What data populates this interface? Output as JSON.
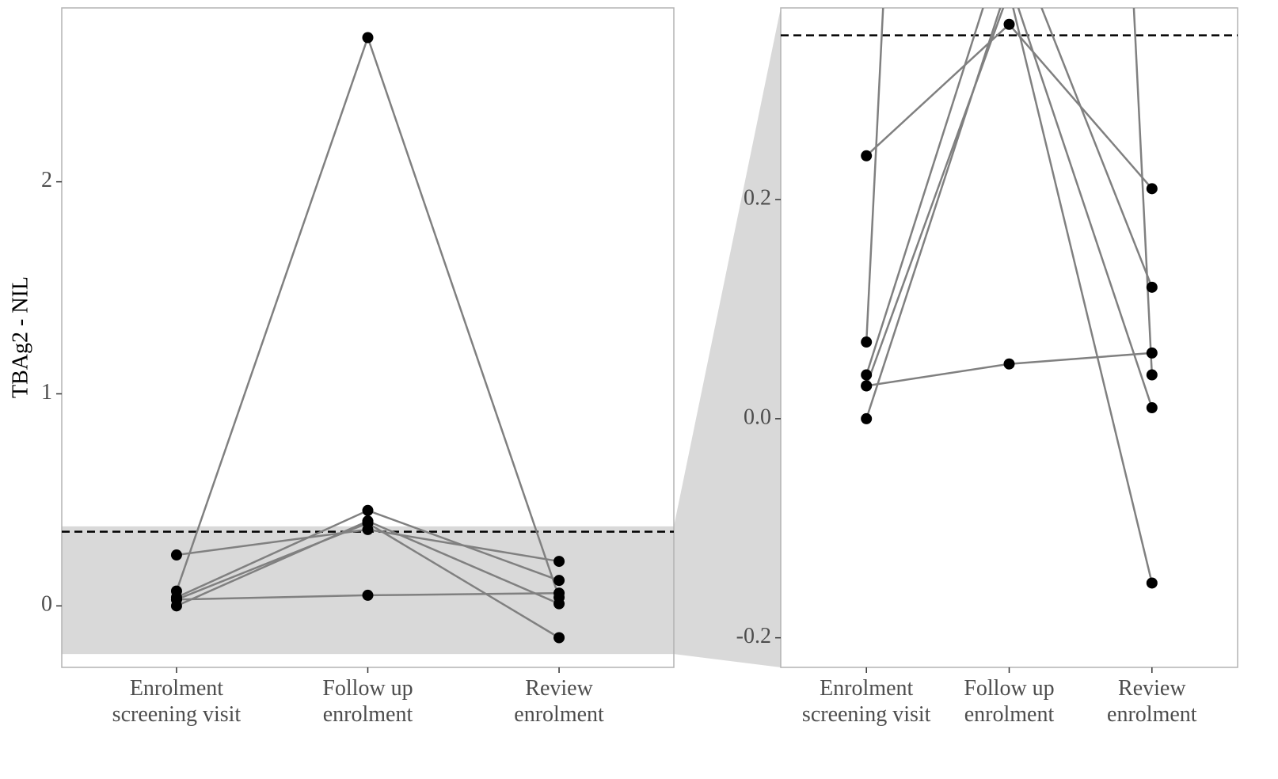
{
  "chart_data": {
    "type": "line",
    "y_label": "TBAg2 - NIL",
    "categories": [
      "Enrolment screening visit",
      "Follow up enrolment",
      "Review enrolment"
    ],
    "series": [
      {
        "color": "#808080",
        "values": [
          0.07,
          2.68,
          0.04
        ]
      },
      {
        "color": "#808080",
        "values": [
          0.24,
          0.36,
          0.21
        ]
      },
      {
        "color": "#808080",
        "values": [
          0.03,
          0.05,
          0.06
        ]
      },
      {
        "color": "#808080",
        "values": [
          0.04,
          0.45,
          0.12
        ]
      },
      {
        "color": "#808080",
        "values": [
          0.0,
          0.4,
          0.01
        ]
      },
      {
        "color": "#808080",
        "values": [
          0.03,
          0.39,
          -0.15
        ]
      }
    ],
    "point_color": "#000000",
    "hline": 0.35,
    "ylim": [
      -0.29,
      2.82
    ],
    "yticks": [
      0,
      1,
      2
    ],
    "zoom": {
      "ylim": [
        -0.227,
        0.375
      ],
      "yticks": [
        -0.2,
        {
          "value": 0,
          "label": "0.0"
        },
        0.2
      ],
      "color": "#d9d9d9"
    }
  }
}
